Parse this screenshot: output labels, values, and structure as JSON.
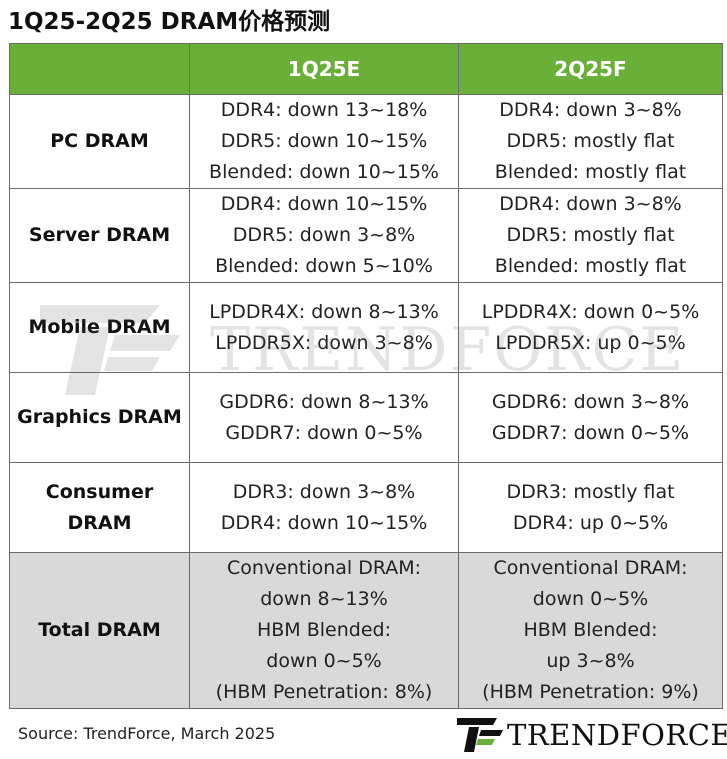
{
  "title": "1Q25-2Q25 DRAM价格预测",
  "table": {
    "headers": [
      "",
      "1Q25E",
      "2Q25F"
    ],
    "rows": [
      {
        "category": "PC DRAM",
        "q1": [
          "DDR4: down 13~18%",
          "DDR5: down 10~15%",
          "Blended: down 10~15%"
        ],
        "q2": [
          "DDR4: down 3~8%",
          "DDR5: mostly flat",
          "Blended: mostly flat"
        ]
      },
      {
        "category": "Server DRAM",
        "q1": [
          "DDR4: down 10~15%",
          "DDR5: down 3~8%",
          "Blended: down 5~10%"
        ],
        "q2": [
          "DDR4: down 3~8%",
          "DDR5: mostly flat",
          "Blended: mostly flat"
        ]
      },
      {
        "category": "Mobile DRAM",
        "q1": [
          "LPDDR4X: down 8~13%",
          "LPDDR5X: down 3~8%"
        ],
        "q2": [
          "LPDDR4X: down 0~5%",
          "LPDDR5X: up 0~5%"
        ]
      },
      {
        "category": "Graphics DRAM",
        "q1": [
          "GDDR6: down 8~13%",
          "GDDR7: down 0~5%"
        ],
        "q2": [
          "GDDR6: down 3~8%",
          "GDDR7: down 0~5%"
        ]
      },
      {
        "category_lines": [
          "Consumer",
          "DRAM"
        ],
        "q1": [
          "DDR3: down 3~8%",
          "DDR4: down 10~15%"
        ],
        "q2": [
          "DDR3: mostly flat",
          "DDR4: up 0~5%"
        ]
      },
      {
        "category": "Total DRAM",
        "q1": [
          "Conventional DRAM:",
          "down 8~13%",
          "HBM Blended:",
          "down 0~5%",
          "(HBM Penetration: 8%)"
        ],
        "q2": [
          "Conventional DRAM:",
          "down 0~5%",
          "HBM Blended:",
          "up 3~8%",
          "(HBM Penetration: 9%)"
        ]
      }
    ]
  },
  "source": "Source: TrendForce, March 2025",
  "logo_text": "TRENDFORCE",
  "watermark_text": "TRENDFORCE",
  "colors": {
    "header_green": "#6aaf38",
    "total_row_gray": "#d9d9d9"
  }
}
